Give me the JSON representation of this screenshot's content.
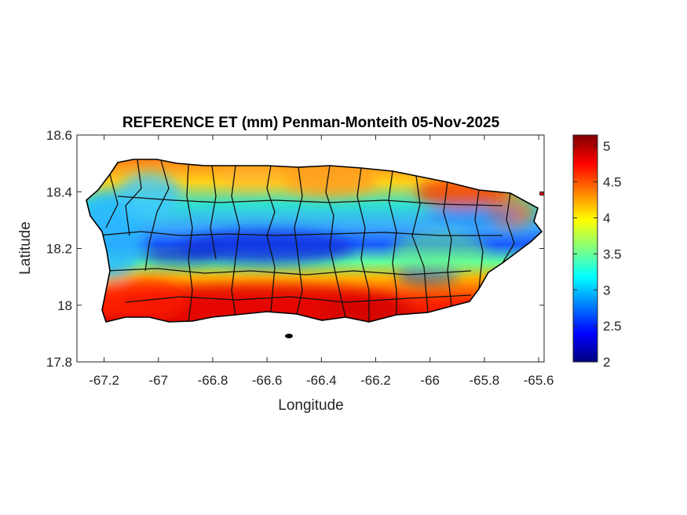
{
  "chart_data": {
    "type": "heatmap",
    "title": "REFERENCE ET (mm) Penman-Monteith 05-Nov-2025",
    "xlabel": "Longitude",
    "ylabel": "Latitude",
    "xlim": [
      -67.3,
      -65.58
    ],
    "ylim": [
      17.8,
      18.6
    ],
    "xticks": [
      -67.2,
      -67,
      -66.8,
      -66.6,
      -66.4,
      -66.2,
      -66,
      -65.8,
      -65.6
    ],
    "xtick_labels": [
      "-67.2",
      "-67",
      "-66.8",
      "-66.6",
      "-66.4",
      "-66.2",
      "-66",
      "-65.8",
      "-65.6"
    ],
    "yticks": [
      17.8,
      18,
      18.2,
      18.4,
      18.6
    ],
    "ytick_labels": [
      "17.8",
      "18",
      "18.2",
      "18.4",
      "18.6"
    ],
    "colorbar": {
      "colormap": "jet",
      "range": [
        2,
        5.15
      ],
      "ticks": [
        2,
        2.5,
        3,
        3.5,
        4,
        4.5,
        5
      ],
      "tick_labels": [
        "2",
        "2.5",
        "3",
        "3.5",
        "4",
        "4.5",
        "5"
      ]
    },
    "grid": false,
    "pattern": {
      "south_coast": 4.9,
      "north_coast_central": 4.4,
      "northeast": 4.6,
      "west": 3.2,
      "central_mountain_band": 2.6,
      "east_interior": 3.2
    }
  }
}
